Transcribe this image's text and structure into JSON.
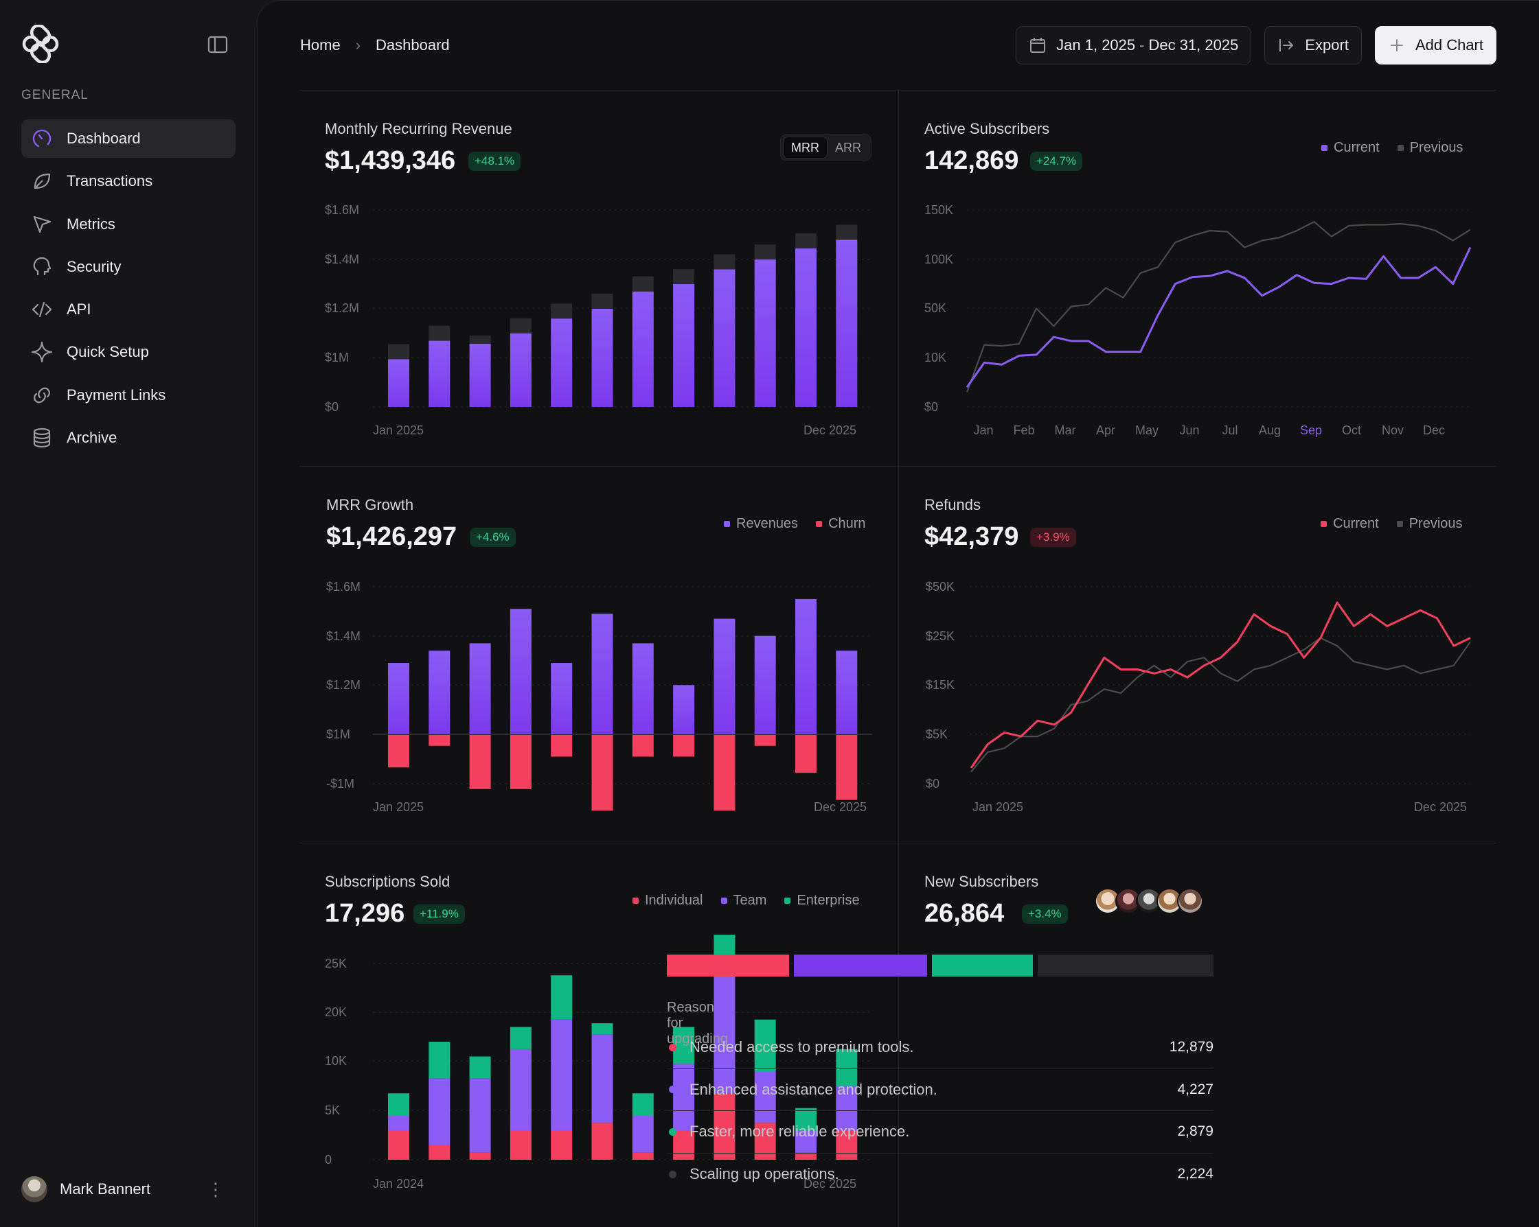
{
  "sidebar": {
    "section_label": "GENERAL",
    "items": [
      {
        "label": "Dashboard",
        "icon": "gauge-icon",
        "active": true
      },
      {
        "label": "Transactions",
        "icon": "leaf-icon"
      },
      {
        "label": "Metrics",
        "icon": "cursor-arrow-icon"
      },
      {
        "label": "Security",
        "icon": "head-profile-icon"
      },
      {
        "label": "API",
        "icon": "code-icon"
      },
      {
        "label": "Quick Setup",
        "icon": "sparkle-icon"
      },
      {
        "label": "Payment Links",
        "icon": "link-icon"
      },
      {
        "label": "Archive",
        "icon": "database-icon"
      }
    ],
    "user": {
      "name": "Mark Bannert"
    }
  },
  "breadcrumb": {
    "home": "Home",
    "current": "Dashboard"
  },
  "toolbar": {
    "date_start": "Jan 1, 2025",
    "date_sep": "-",
    "date_end": "Dec 31, 2025",
    "export_label": "Export",
    "add_chart_label": "Add Chart"
  },
  "colors": {
    "purple": "#7c3aed",
    "red": "#f43f5e",
    "green": "#10b981",
    "gray": "#3a3a40"
  },
  "mrr": {
    "title": "Monthly Recurring Revenue",
    "value": "$1,439,346",
    "badge": "+48.1%",
    "toggle": [
      "MRR",
      "ARR"
    ]
  },
  "active_subscribers": {
    "title": "Active Subscribers",
    "value": "142,869",
    "badge": "+24.7%",
    "legend": [
      "Current",
      "Previous"
    ]
  },
  "mrr_growth": {
    "title": "MRR Growth",
    "value": "$1,426,297",
    "badge": "+4.6%",
    "legend": [
      "Revenues",
      "Churn"
    ]
  },
  "refunds": {
    "title": "Refunds",
    "value": "$42,379",
    "badge": "+3.9%",
    "legend": [
      "Current",
      "Previous"
    ]
  },
  "subscriptions_sold": {
    "title": "Subscriptions Sold",
    "value": "17,296",
    "badge": "+11.9%",
    "legend": [
      "Individual",
      "Team",
      "Enterprise"
    ]
  },
  "new_subscribers": {
    "title": "New Subscribers",
    "value": "26,864",
    "badge": "+3.4%",
    "reason_label": "Reason for upgrading",
    "reasons": [
      {
        "text": "Needed access to premium tools.",
        "count": "12,879",
        "color": "#f43f5e"
      },
      {
        "text": "Enhanced assistance and protection.",
        "count": "4,227",
        "color": "#8b5cf6"
      },
      {
        "text": "Faster, more reliable experience.",
        "count": "2,879",
        "color": "#10b981"
      },
      {
        "text": "Scaling up operations.",
        "count": "2,224",
        "color": "#3a3a40"
      }
    ]
  },
  "chart_data": [
    {
      "id": "mrr",
      "type": "bar",
      "y_ticks": [
        "$1.6M",
        "$1.4M",
        "$1.2M",
        "$1M",
        "$0"
      ],
      "x_labels": [
        "Jan 2025",
        "Dec 2025"
      ],
      "ylim": [
        0,
        1.6
      ],
      "series": [
        {
          "values": [
            0.36,
            0.45,
            0.51,
            0.61,
            0.7,
            0.81,
            0.89,
            0.95,
            1.06,
            1.17,
            1.24,
            1.36
          ]
        },
        {
          "values": [
            0.51,
            0.66,
            0.58,
            0.72,
            0.84,
            0.92,
            1.06,
            1.12,
            1.24,
            1.32,
            1.41,
            1.48
          ]
        }
      ]
    },
    {
      "id": "active_subscribers",
      "type": "line",
      "y_ticks": [
        "150K",
        "100K",
        "50K",
        "10K",
        "$0"
      ],
      "x_labels": [
        "Jan",
        "Feb",
        "Mar",
        "Apr",
        "May",
        "Jun",
        "Jul",
        "Aug",
        "Sep",
        "Oct",
        "Nov",
        "Dec"
      ],
      "highlight_x": "Sep",
      "series": [
        {
          "name": "Current",
          "values": [
            0.2,
            0.45,
            0.43,
            0.52,
            0.53,
            0.71,
            0.67,
            0.67,
            0.56,
            0.56,
            0.56,
            0.93,
            1.25,
            1.32,
            1.33,
            1.38,
            1.31,
            1.13,
            1.22,
            1.34,
            1.26,
            1.25,
            1.31,
            1.3,
            1.53,
            1.31,
            1.31,
            1.42,
            1.25,
            1.62
          ]
        },
        {
          "name": "Previous",
          "values": [
            0.15,
            0.63,
            0.62,
            0.64,
            1.0,
            0.82,
            1.02,
            1.04,
            1.21,
            1.11,
            1.36,
            1.42,
            1.67,
            1.74,
            1.79,
            1.78,
            1.62,
            1.69,
            1.72,
            1.79,
            1.88,
            1.73,
            1.84,
            1.85,
            1.85,
            1.86,
            1.84,
            1.79,
            1.69,
            1.8
          ]
        }
      ]
    },
    {
      "id": "mrr_growth",
      "type": "bar",
      "y_ticks": [
        "$1.6M",
        "$1.4M",
        "$1.2M",
        "$1M",
        "-$1M"
      ],
      "x_labels": [
        "Jan 2025",
        "Dec 2025"
      ],
      "series": [
        {
          "name": "Revenues",
          "values": [
            0.29,
            0.34,
            0.37,
            0.51,
            0.29,
            0.49,
            0.37,
            0.2,
            0.47,
            0.4,
            0.55,
            0.34
          ]
        },
        {
          "name": "Churn",
          "values": [
            -0.06,
            -0.02,
            -0.1,
            -0.1,
            -0.04,
            -0.14,
            -0.04,
            -0.04,
            -0.14,
            -0.02,
            -0.07,
            -0.12
          ]
        }
      ]
    },
    {
      "id": "refunds",
      "type": "line",
      "y_ticks": [
        "$50K",
        "$25K",
        "$15K",
        "$5K",
        "$0"
      ],
      "x_labels": [
        "Jan 2025",
        "Dec 2025"
      ],
      "series": [
        {
          "name": "Current",
          "values": [
            0.4,
            1.0,
            1.3,
            1.2,
            1.6,
            1.5,
            1.8,
            2.5,
            3.2,
            2.9,
            2.9,
            2.8,
            2.9,
            2.7,
            3.0,
            3.2,
            3.6,
            4.3,
            4.0,
            3.8,
            3.2,
            3.7,
            4.6,
            4.0,
            4.3,
            4.0,
            4.2,
            4.4,
            4.2,
            3.5,
            3.7
          ]
        },
        {
          "name": "Previous",
          "values": [
            0.3,
            0.8,
            0.9,
            1.2,
            1.2,
            1.4,
            2.0,
            2.1,
            2.4,
            2.3,
            2.7,
            3.0,
            2.7,
            3.1,
            3.2,
            2.8,
            2.6,
            2.9,
            3.0,
            3.2,
            3.4,
            3.7,
            3.5,
            3.1,
            3.0,
            2.9,
            3.0,
            2.8,
            2.9,
            3.0,
            3.6
          ]
        }
      ]
    },
    {
      "id": "subscriptions_sold",
      "type": "bar",
      "y_ticks": [
        "25K",
        "20K",
        "10K",
        "5K",
        "0"
      ],
      "x_labels": [
        "Jan 2024",
        "Dec 2025"
      ],
      "series": [
        {
          "name": "Individual",
          "values": [
            0.4,
            0.2,
            0.1,
            0.4,
            0.4,
            0.5,
            0.1,
            0.4,
            0.9,
            0.5,
            0.1,
            0.4
          ]
        },
        {
          "name": "Team",
          "values": [
            0.2,
            0.9,
            1.0,
            1.1,
            1.5,
            1.2,
            0.5,
            0.9,
            1.6,
            0.7,
            0.3,
            0.6
          ]
        },
        {
          "name": "Enterprise",
          "values": [
            0.3,
            0.5,
            0.3,
            0.3,
            0.6,
            0.15,
            0.3,
            0.5,
            0.55,
            0.7,
            0.3,
            0.5
          ]
        }
      ]
    }
  ]
}
